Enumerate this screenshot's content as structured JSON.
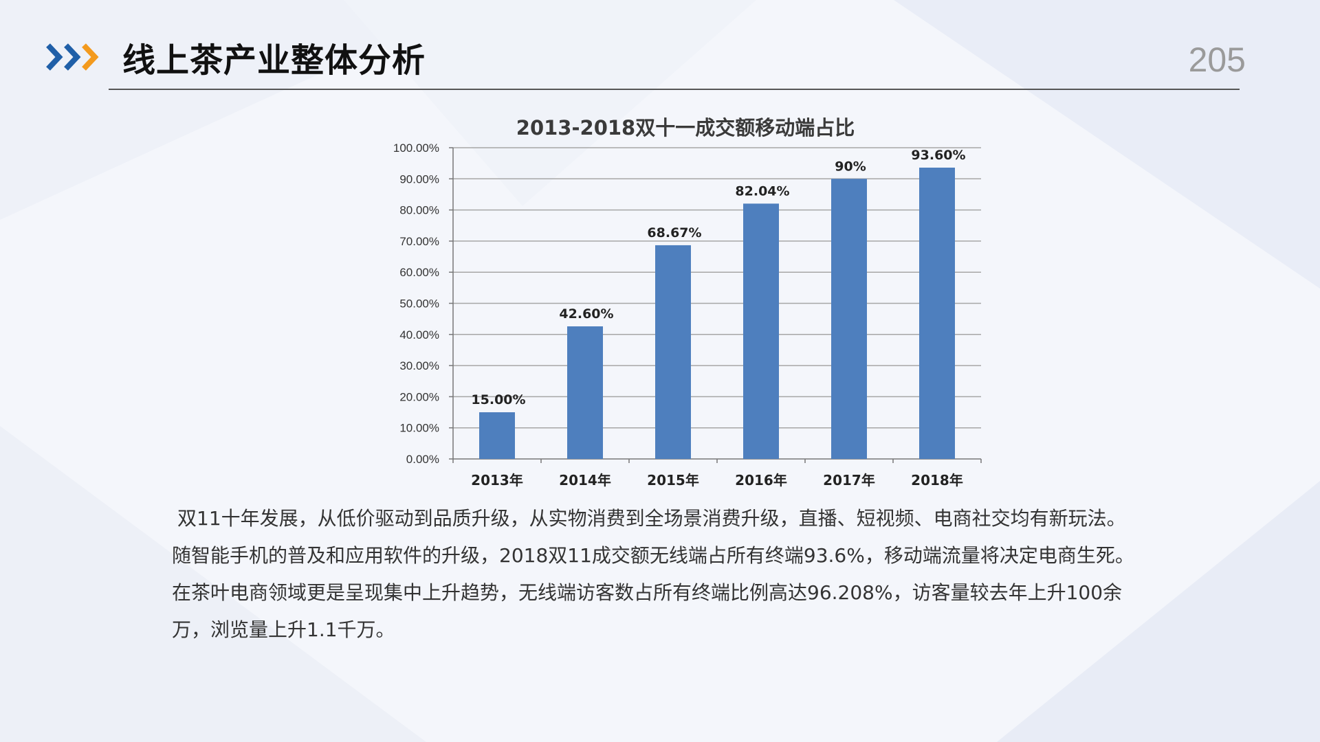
{
  "page": {
    "title": "线上茶产业整体分析",
    "page_number": "205"
  },
  "chart_data": {
    "type": "bar",
    "title": "2013-2018双十一成交额移动端占比",
    "categories": [
      "2013年",
      "2014年",
      "2015年",
      "2016年",
      "2017年",
      "2018年"
    ],
    "values": [
      15.0,
      42.6,
      68.67,
      82.04,
      90,
      93.6
    ],
    "data_labels": [
      "15.00%",
      "42.60%",
      "68.67%",
      "82.04%",
      "90%",
      "93.60%"
    ],
    "ylim": [
      0,
      100
    ],
    "yticks": [
      "0.00%",
      "10.00%",
      "20.00%",
      "30.00%",
      "40.00%",
      "50.00%",
      "60.00%",
      "70.00%",
      "80.00%",
      "90.00%",
      "100.00%"
    ],
    "grid": true,
    "bar_color": "#4e7fbe"
  },
  "body": {
    "lines": [
      "双11十年发展，从低价驱动到品质升级，从实物消费到全场景消费升级，直播、短视频、电商社交均有新玩法。",
      "随智能手机的普及和应用软件的升级，2018双11成交额无线端占所有终端93.6%，移动端流量将决定电商生死。",
      "在茶叶电商领域更是呈现集中上升趋势，无线端访客数占所有终端比例高达96.208%，访客量较去年上升100余",
      "万，浏览量上升1.1千万。"
    ]
  },
  "colors": {
    "arrow_blue": "#1f5fa8",
    "arrow_orange": "#f39a1e"
  }
}
